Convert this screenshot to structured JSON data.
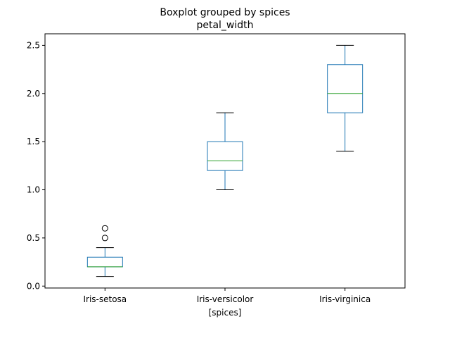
{
  "chart_data": {
    "type": "boxplot",
    "title": "Boxplot grouped by spices",
    "subtitle": "petal_width",
    "xlabel": "[spices]",
    "ylabel": "",
    "categories": [
      "Iris-setosa",
      "Iris-versicolor",
      "Iris-virginica"
    ],
    "boxes": [
      {
        "category": "Iris-setosa",
        "whisker_low": 0.1,
        "q1": 0.2,
        "median": 0.2,
        "q3": 0.3,
        "whisker_high": 0.4,
        "outliers": [
          0.5,
          0.6
        ]
      },
      {
        "category": "Iris-versicolor",
        "whisker_low": 1.0,
        "q1": 1.2,
        "median": 1.3,
        "q3": 1.5,
        "whisker_high": 1.8,
        "outliers": []
      },
      {
        "category": "Iris-virginica",
        "whisker_low": 1.4,
        "q1": 1.8,
        "median": 2.0,
        "q3": 2.3,
        "whisker_high": 2.5,
        "outliers": []
      }
    ],
    "yticks": [
      0.0,
      0.5,
      1.0,
      1.5,
      2.0,
      2.5
    ],
    "ytick_labels": [
      "0.0",
      "0.5",
      "1.0",
      "1.5",
      "2.0",
      "2.5"
    ],
    "ylim": [
      -0.02,
      2.62
    ],
    "grid": false,
    "colors": {
      "box": "#1f77b4",
      "median": "#2ca02c",
      "whisker": "#1f77b4",
      "cap": "#000000",
      "outlier": "#000000"
    }
  }
}
